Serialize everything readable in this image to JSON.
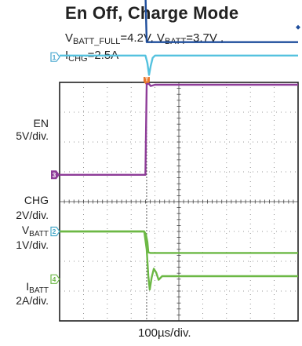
{
  "chart_data": {
    "type": "line",
    "title": "En Off, Charge Mode",
    "conditions": {
      "vbatt_full": {
        "main": "V",
        "sub": "BATT_FULL",
        "value": "=4.2V,"
      },
      "vbatt": {
        "main": "V",
        "sub": "BATT",
        "value": "=3.7V ,"
      },
      "ichg": {
        "main": "I",
        "sub": "CHG",
        "value": "=2.5A"
      }
    },
    "xlabel": "100µs/div.",
    "x_divisions": 10,
    "y_divisions": 8,
    "x_unit": "div",
    "y_unit": "div",
    "trigger_marker": "T",
    "trigger_x": 3.65,
    "channel_labels": {
      "en": {
        "name": "EN",
        "scale": "5V/div.",
        "marker": "1"
      },
      "chg": {
        "name": "CHG",
        "scale": "2V/div.",
        "marker": "3"
      },
      "vbatt": {
        "main": "V",
        "sub": "BATT",
        "scale": "1V/div.",
        "marker": "2"
      },
      "ibatt": {
        "main": "I",
        "sub": "BATT",
        "scale": "2A/div.",
        "marker": "4"
      }
    },
    "series": [
      {
        "id": "en_upper",
        "color": "#1f4e9c",
        "points": [
          [
            0,
            7.0
          ],
          [
            3.6,
            7.0
          ],
          [
            3.65,
            5.35
          ],
          [
            10,
            5.35
          ]
        ]
      },
      {
        "id": "en_lower",
        "color": "#55c2df",
        "points": [
          [
            0,
            4.9
          ],
          [
            3.6,
            4.9
          ],
          [
            3.68,
            4.65
          ],
          [
            3.75,
            4.25
          ],
          [
            3.82,
            4.55
          ],
          [
            3.9,
            4.82
          ],
          [
            4.0,
            4.9
          ],
          [
            10,
            4.9
          ]
        ]
      },
      {
        "id": "chg",
        "color": "#8e3c98",
        "points": [
          [
            0,
            0.9
          ],
          [
            3.6,
            0.9
          ],
          [
            3.65,
            3.95
          ],
          [
            3.75,
            3.95
          ],
          [
            3.82,
            3.88
          ],
          [
            4.0,
            3.92
          ],
          [
            10,
            3.92
          ]
        ]
      },
      {
        "id": "vbatt",
        "color": "#6cb845",
        "points": [
          [
            0,
            -1.0
          ],
          [
            3.55,
            -1.0
          ],
          [
            3.62,
            -1.1
          ],
          [
            3.68,
            -1.35
          ],
          [
            3.72,
            -1.7
          ],
          [
            3.8,
            -1.72
          ],
          [
            10,
            -1.72
          ]
        ]
      },
      {
        "id": "ibatt",
        "color": "#6cb845",
        "points": [
          [
            0,
            -1.0
          ],
          [
            3.55,
            -1.0
          ],
          [
            3.65,
            -1.6
          ],
          [
            3.72,
            -2.5
          ],
          [
            3.78,
            -2.95
          ],
          [
            3.86,
            -2.55
          ],
          [
            3.95,
            -2.25
          ],
          [
            4.05,
            -2.38
          ],
          [
            4.15,
            -2.62
          ],
          [
            4.3,
            -2.5
          ],
          [
            10,
            -2.5
          ]
        ]
      }
    ],
    "grid": true,
    "legend": "none"
  }
}
